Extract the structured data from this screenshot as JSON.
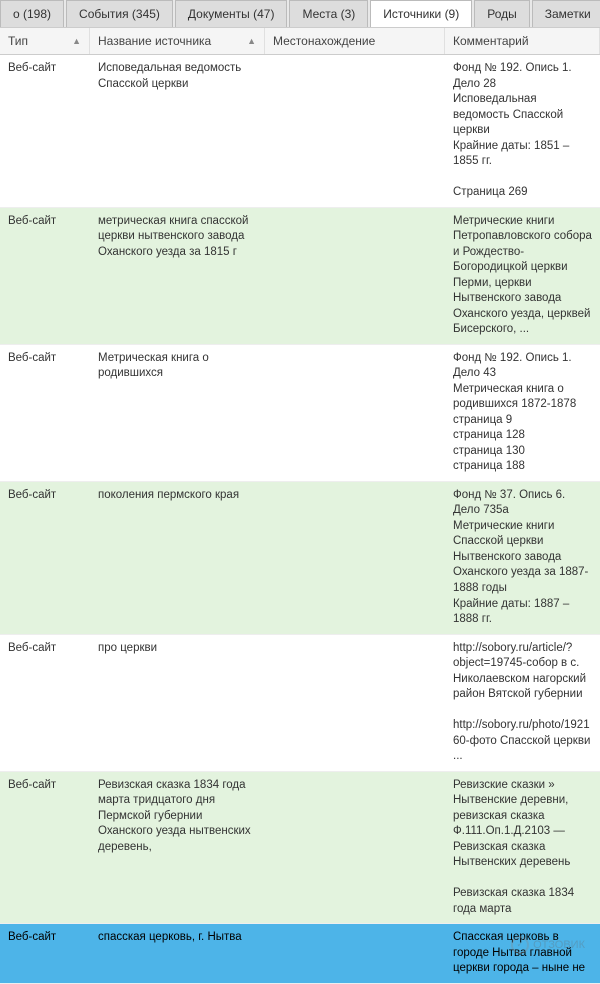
{
  "tabs": [
    {
      "label": "о (198)"
    },
    {
      "label": "События (345)"
    },
    {
      "label": "Документы (47)"
    },
    {
      "label": "Места (3)"
    },
    {
      "label": "Источники (9)",
      "active": true
    },
    {
      "label": "Роды"
    },
    {
      "label": "Заметки"
    }
  ],
  "columns": {
    "type": "Тип",
    "name": "Название источника",
    "location": "Местонахождение",
    "comment": "Комментарий"
  },
  "rows": [
    {
      "type": "Веб-сайт",
      "name": "Исповедальная ведомость Спасской церкви",
      "location": "",
      "comment": "Фонд № 192. Опись 1. Дело 28\nИсповедальная ведомость Спасской церкви\nКрайние даты: 1851 – 1855 гг.\n\nСтраница 269",
      "bg": ""
    },
    {
      "type": "Веб-сайт",
      "name": "метрическая книга спасской церкви нытвенского завода Оханского уезда за 1815 г",
      "location": "",
      "comment": "Метрические книги Петропавловского собора и Рождество-Богородицкой церкви Перми, церкви Нытвенского завода Оханского уезда, церквей Бисерского, ...",
      "bg": "green"
    },
    {
      "type": "Веб-сайт",
      "name": "Метрическая книга о родившихся",
      "location": "",
      "comment": "Фонд № 192. Опись 1. Дело 43\nМетрическая книга о родившихся 1872-1878\nстраница 9\nстраница 128\nстраница 130\nстраница 188",
      "bg": ""
    },
    {
      "type": "Веб-сайт",
      "name": "поколения пермского края",
      "location": "",
      "comment": "Фонд № 37. Опись 6. Дело 735а\nМетрические книги Спасской церкви Нытвенского завода Оханского уезда за 1887-1888 годы\nКрайние даты: 1887 – 1888 гг.",
      "bg": "green"
    },
    {
      "type": "Веб-сайт",
      "name": "про церкви",
      "location": "",
      "comment": "http://sobory.ru/article/?object=19745-собор в с. Николаевском нагорский район Вятской губернии\n\nhttp://sobory.ru/photo/192160-фото Спасской церкви ...",
      "bg": ""
    },
    {
      "type": "Веб-сайт",
      "name": "Ревизская сказка 1834 года марта тридцатого дня Пермской губернии Оханского уезда нытвенских деревень,",
      "location": "",
      "comment": "Ревизские сказки » Нытвенские деревни, ревизская сказка Ф.111.Оп.1.Д.2103 — Ревизская сказка Нытвенских деревень\n\nРевизская сказка 1834 года марта",
      "bg": "green"
    },
    {
      "type": "Веб-сайт",
      "name": "спасская церковь, г. Нытва",
      "location": "",
      "comment": "Спасская церковь в городе Нытва главной церкви города – ныне не",
      "bg": "blue"
    }
  ],
  "watermark": "ОТЗОВИК"
}
